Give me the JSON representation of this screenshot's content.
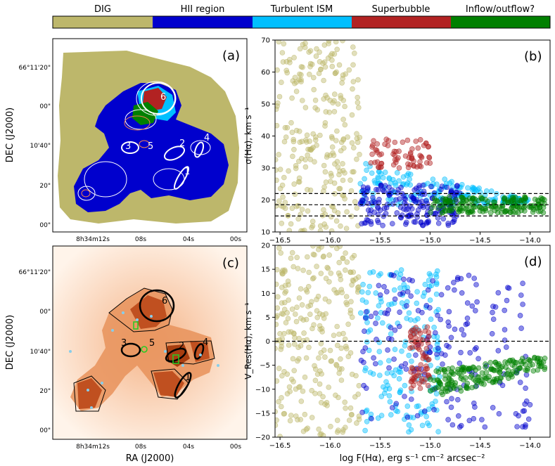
{
  "legend": {
    "items": [
      {
        "label": "DIG",
        "color": "#bdb76b"
      },
      {
        "label": "HII region",
        "color": "#0000cd"
      },
      {
        "label": "Turbulent ISM",
        "color": "#00bfff"
      },
      {
        "label": "Superbubble",
        "color": "#b22222"
      },
      {
        "label": "Inflow/outflow?",
        "color": "#008000"
      }
    ]
  },
  "panels": {
    "a": {
      "tag": "(a)"
    },
    "b": {
      "tag": "(b)"
    },
    "c": {
      "tag": "(c)"
    },
    "d": {
      "tag": "(d)"
    }
  },
  "sky_axes": {
    "dec_label": "DEC (J2000)",
    "ra_label": "RA (J2000)",
    "dec_ticks": [
      "66°11'20\"",
      "00\"",
      "10'40\"",
      "20\"",
      "00\""
    ],
    "ra_ticks": [
      "8h34m12s",
      "08s",
      "04s",
      "00s"
    ]
  },
  "region_numbers": [
    "1",
    "2",
    "3",
    "4",
    "5",
    "6"
  ],
  "chart_data": [
    {
      "type": "scatter",
      "panel": "b",
      "ylabel": "σ(Hα), km s⁻¹",
      "xlim": [
        -16.55,
        -13.8
      ],
      "ylim": [
        10,
        70
      ],
      "xticks": [
        -16.5,
        -16.0,
        -15.5,
        -15.0,
        -14.5,
        -14.0
      ],
      "xtick_labels": [
        "−16.5",
        "−16.0",
        "−15.5",
        "−15.0",
        "−14.5",
        "−14.0"
      ],
      "yticks": [
        10,
        20,
        30,
        40,
        50,
        60,
        70
      ],
      "hlines": [
        15,
        18.5,
        22
      ],
      "series": [
        {
          "color": "#bdb76b",
          "x_range": [
            -16.55,
            -15.7
          ],
          "y_range": [
            10,
            70
          ]
        },
        {
          "color": "#00bfff",
          "x_range": [
            -15.7,
            -14.0
          ],
          "y_range": [
            17,
            33
          ]
        },
        {
          "color": "#0000cd",
          "x_range": [
            -15.7,
            -14.7
          ],
          "y_range": [
            12,
            25
          ]
        },
        {
          "color": "#b22222",
          "x_range": [
            -15.6,
            -15.0
          ],
          "y_range": [
            30,
            39
          ]
        },
        {
          "color": "#008000",
          "x_range": [
            -15.0,
            -13.85
          ],
          "y_range": [
            16,
            21
          ]
        }
      ]
    },
    {
      "type": "scatter",
      "panel": "d",
      "xlabel": "log F(Hα), erg s⁻¹ cm⁻² arcsec⁻²",
      "ylabel": "V_Res(Hα), km s⁻¹",
      "xlim": [
        -16.55,
        -13.8
      ],
      "ylim": [
        -20,
        20
      ],
      "xticks": [
        -16.5,
        -16.0,
        -15.5,
        -15.0,
        -14.5,
        -14.0
      ],
      "xtick_labels": [
        "−16.5",
        "−16.0",
        "−15.5",
        "−15.0",
        "−14.5",
        "−14.0"
      ],
      "yticks": [
        -20,
        -15,
        -10,
        -5,
        0,
        5,
        10,
        15,
        20
      ],
      "hlines": [
        0
      ],
      "series": [
        {
          "color": "#bdb76b",
          "x_range": [
            -16.55,
            -15.7
          ],
          "y_range": [
            -20,
            20
          ]
        },
        {
          "color": "#00bfff",
          "x_range": [
            -15.7,
            -14.9
          ],
          "y_range": [
            -19,
            15
          ]
        },
        {
          "color": "#0000cd",
          "x_range": [
            -15.7,
            -14.0
          ],
          "y_range": [
            -18,
            14
          ]
        },
        {
          "color": "#b22222",
          "x_range": [
            -15.2,
            -15.0
          ],
          "y_range": [
            -10,
            3
          ]
        },
        {
          "color": "#008000",
          "x_range": [
            -15.0,
            -13.85
          ],
          "y_range": [
            -12,
            -3
          ]
        }
      ]
    }
  ]
}
